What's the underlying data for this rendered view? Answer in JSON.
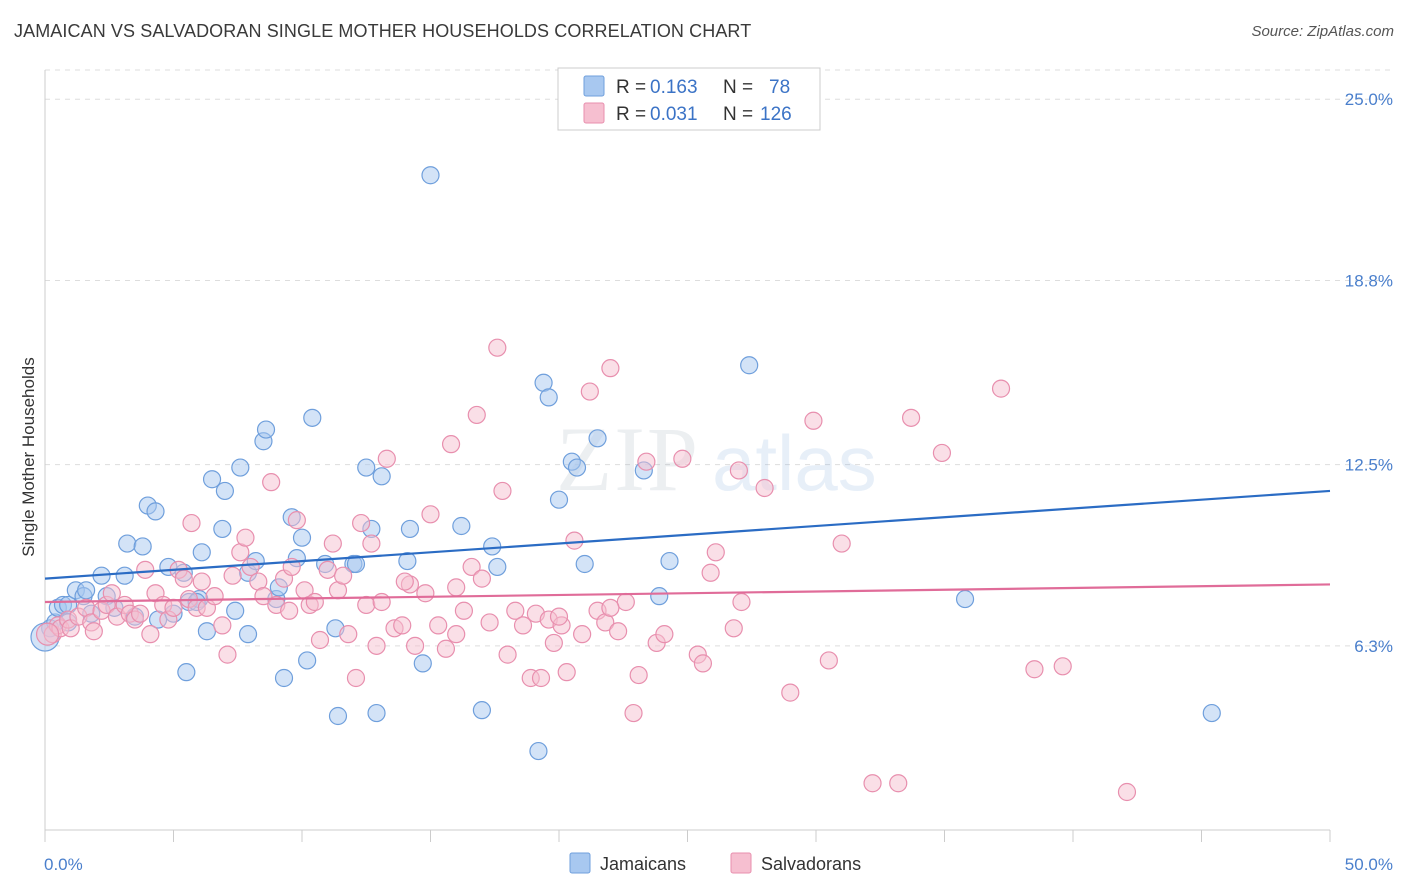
{
  "header": {
    "title": "JAMAICAN VS SALVADORAN SINGLE MOTHER HOUSEHOLDS CORRELATION CHART",
    "source": "Source: ZipAtlas.com"
  },
  "watermark": {
    "zip": "ZIP",
    "atlas": "atlas"
  },
  "colors": {
    "jamaican_fill": "#a8c8f0",
    "jamaican_stroke": "#6f9fdc",
    "jamaican_line": "#2b6cc4",
    "salvadoran_fill": "#f6bfd0",
    "salvadoran_stroke": "#e88fae",
    "salvadoran_line": "#e06c99",
    "grid": "#dddddd",
    "axis_text": "#4a7fcc"
  },
  "stats_legend": {
    "r_label": "R =",
    "n_label": "N =",
    "rows": [
      {
        "r": "0.163",
        "n": "78"
      },
      {
        "r": "0.031",
        "n": "126"
      }
    ]
  },
  "chart_data": {
    "type": "scatter",
    "title": "JAMAICAN VS SALVADORAN SINGLE MOTHER HOUSEHOLDS CORRELATION CHART",
    "xlabel": "",
    "ylabel": "Single Mother Households",
    "xlim": [
      0,
      50
    ],
    "ylim": [
      0,
      26
    ],
    "x_tick_labels": [
      "0.0%",
      "50.0%"
    ],
    "y_ticks": [
      6.3,
      12.5,
      18.8,
      25.0
    ],
    "y_tick_labels": [
      "6.3%",
      "12.5%",
      "18.8%",
      "25.0%"
    ],
    "grid": "horizontal dashed",
    "legend_placement": "bottom-center",
    "series": [
      {
        "name": "Jamaicans",
        "r": 0.163,
        "n": 78,
        "trend": {
          "x": [
            0,
            50
          ],
          "y": [
            8.6,
            11.6
          ]
        },
        "points": [
          [
            0.2,
            6.9
          ],
          [
            0.4,
            7.1
          ],
          [
            0.5,
            7.6
          ],
          [
            0.7,
            7.7
          ],
          [
            0.9,
            7.7
          ],
          [
            1.2,
            8.2
          ],
          [
            1.5,
            8.0
          ],
          [
            1.6,
            8.2
          ],
          [
            2.2,
            8.7
          ],
          [
            2.4,
            8.0
          ],
          [
            3.1,
            8.7
          ],
          [
            3.2,
            9.8
          ],
          [
            3.8,
            9.7
          ],
          [
            4.0,
            11.1
          ],
          [
            4.3,
            10.9
          ],
          [
            4.8,
            9.0
          ],
          [
            5.0,
            7.4
          ],
          [
            5.4,
            8.8
          ],
          [
            5.5,
            5.4
          ],
          [
            5.6,
            7.8
          ],
          [
            6.0,
            7.9
          ],
          [
            6.1,
            9.5
          ],
          [
            6.3,
            6.8
          ],
          [
            6.5,
            12.0
          ],
          [
            6.9,
            10.3
          ],
          [
            7.0,
            11.6
          ],
          [
            7.4,
            7.5
          ],
          [
            7.6,
            12.4
          ],
          [
            7.9,
            8.8
          ],
          [
            7.9,
            6.7
          ],
          [
            8.2,
            9.2
          ],
          [
            8.5,
            13.3
          ],
          [
            8.6,
            13.7
          ],
          [
            9.0,
            7.9
          ],
          [
            9.3,
            5.2
          ],
          [
            9.6,
            10.7
          ],
          [
            9.8,
            9.3
          ],
          [
            10.0,
            10.0
          ],
          [
            10.2,
            5.8
          ],
          [
            10.4,
            14.1
          ],
          [
            10.9,
            9.1
          ],
          [
            11.3,
            6.9
          ],
          [
            11.4,
            3.9
          ],
          [
            12.0,
            9.1
          ],
          [
            12.5,
            12.4
          ],
          [
            12.7,
            10.3
          ],
          [
            12.9,
            4.0
          ],
          [
            13.1,
            12.1
          ],
          [
            14.1,
            9.2
          ],
          [
            14.2,
            10.3
          ],
          [
            14.7,
            5.7
          ],
          [
            15.0,
            22.4
          ],
          [
            16.2,
            10.4
          ],
          [
            17.0,
            4.1
          ],
          [
            17.4,
            9.7
          ],
          [
            17.6,
            9.0
          ],
          [
            19.2,
            2.7
          ],
          [
            19.4,
            15.3
          ],
          [
            19.6,
            14.8
          ],
          [
            20.0,
            11.3
          ],
          [
            20.5,
            12.6
          ],
          [
            20.7,
            12.4
          ],
          [
            21.0,
            9.1
          ],
          [
            21.5,
            13.4
          ],
          [
            23.3,
            12.3
          ],
          [
            23.9,
            8.0
          ],
          [
            24.3,
            9.2
          ],
          [
            27.4,
            15.9
          ],
          [
            35.8,
            7.9
          ],
          [
            45.4,
            4.0
          ],
          [
            0.9,
            7.1
          ],
          [
            1.8,
            7.4
          ],
          [
            2.7,
            7.6
          ],
          [
            3.5,
            7.3
          ],
          [
            4.4,
            7.2
          ],
          [
            5.9,
            7.8
          ],
          [
            12.1,
            9.1
          ],
          [
            9.1,
            8.3
          ]
        ]
      },
      {
        "name": "Salvadorans",
        "r": 0.031,
        "n": 126,
        "trend": {
          "x": [
            0,
            50
          ],
          "y": [
            7.8,
            8.4
          ]
        },
        "points": [
          [
            0.3,
            6.7
          ],
          [
            0.5,
            7.0
          ],
          [
            0.6,
            6.9
          ],
          [
            0.9,
            7.2
          ],
          [
            1.0,
            6.9
          ],
          [
            1.3,
            7.3
          ],
          [
            1.6,
            7.6
          ],
          [
            1.8,
            7.1
          ],
          [
            1.9,
            6.8
          ],
          [
            2.2,
            7.5
          ],
          [
            2.4,
            7.7
          ],
          [
            2.6,
            8.1
          ],
          [
            2.8,
            7.3
          ],
          [
            3.1,
            7.7
          ],
          [
            3.3,
            7.4
          ],
          [
            3.5,
            7.2
          ],
          [
            3.7,
            7.4
          ],
          [
            3.9,
            8.9
          ],
          [
            4.1,
            6.7
          ],
          [
            4.3,
            8.1
          ],
          [
            4.6,
            7.7
          ],
          [
            4.8,
            7.2
          ],
          [
            5.0,
            7.6
          ],
          [
            5.2,
            8.9
          ],
          [
            5.4,
            8.6
          ],
          [
            5.6,
            7.9
          ],
          [
            5.7,
            10.5
          ],
          [
            5.9,
            7.6
          ],
          [
            6.1,
            8.5
          ],
          [
            6.3,
            7.6
          ],
          [
            6.6,
            8.0
          ],
          [
            6.9,
            7.0
          ],
          [
            7.1,
            6.0
          ],
          [
            7.3,
            8.7
          ],
          [
            7.6,
            9.5
          ],
          [
            7.8,
            10.0
          ],
          [
            8.0,
            9.0
          ],
          [
            8.3,
            8.5
          ],
          [
            8.5,
            8.0
          ],
          [
            8.8,
            11.9
          ],
          [
            9.0,
            7.7
          ],
          [
            9.3,
            8.6
          ],
          [
            9.6,
            9.0
          ],
          [
            9.8,
            10.6
          ],
          [
            10.1,
            8.2
          ],
          [
            10.3,
            7.7
          ],
          [
            10.5,
            7.8
          ],
          [
            10.7,
            6.5
          ],
          [
            11.0,
            8.9
          ],
          [
            11.2,
            9.8
          ],
          [
            11.4,
            8.2
          ],
          [
            11.6,
            8.7
          ],
          [
            11.8,
            6.7
          ],
          [
            12.1,
            5.2
          ],
          [
            12.3,
            10.5
          ],
          [
            12.5,
            7.7
          ],
          [
            12.7,
            9.8
          ],
          [
            12.9,
            6.3
          ],
          [
            13.1,
            7.8
          ],
          [
            13.3,
            12.7
          ],
          [
            13.6,
            6.9
          ],
          [
            13.9,
            7.0
          ],
          [
            14.2,
            8.4
          ],
          [
            14.4,
            6.3
          ],
          [
            14.8,
            8.1
          ],
          [
            15.0,
            10.8
          ],
          [
            15.3,
            7.0
          ],
          [
            15.6,
            6.2
          ],
          [
            15.8,
            13.2
          ],
          [
            16.0,
            6.7
          ],
          [
            16.3,
            7.5
          ],
          [
            16.6,
            9.0
          ],
          [
            16.8,
            14.2
          ],
          [
            17.0,
            8.6
          ],
          [
            17.3,
            7.1
          ],
          [
            17.6,
            16.5
          ],
          [
            17.8,
            11.6
          ],
          [
            18.0,
            6.0
          ],
          [
            18.3,
            7.5
          ],
          [
            18.6,
            7.0
          ],
          [
            18.9,
            5.2
          ],
          [
            19.1,
            7.4
          ],
          [
            19.3,
            5.2
          ],
          [
            19.6,
            7.2
          ],
          [
            19.8,
            6.4
          ],
          [
            20.1,
            7.0
          ],
          [
            20.3,
            5.4
          ],
          [
            20.6,
            9.9
          ],
          [
            20.9,
            6.7
          ],
          [
            21.2,
            15.0
          ],
          [
            21.5,
            7.5
          ],
          [
            21.8,
            7.1
          ],
          [
            22.0,
            15.8
          ],
          [
            22.3,
            6.8
          ],
          [
            22.6,
            7.8
          ],
          [
            22.9,
            4.0
          ],
          [
            23.1,
            5.3
          ],
          [
            23.4,
            12.6
          ],
          [
            23.8,
            6.4
          ],
          [
            24.1,
            6.7
          ],
          [
            25.4,
            6.0
          ],
          [
            25.6,
            5.7
          ],
          [
            25.9,
            8.8
          ],
          [
            26.1,
            9.5
          ],
          [
            26.8,
            6.9
          ],
          [
            27.1,
            7.8
          ],
          [
            28.0,
            11.7
          ],
          [
            29.0,
            4.7
          ],
          [
            29.9,
            14.0
          ],
          [
            30.5,
            5.8
          ],
          [
            31.0,
            9.8
          ],
          [
            32.2,
            1.6
          ],
          [
            33.2,
            1.6
          ],
          [
            33.7,
            14.1
          ],
          [
            34.9,
            12.9
          ],
          [
            37.2,
            15.1
          ],
          [
            38.5,
            5.5
          ],
          [
            39.6,
            5.6
          ],
          [
            42.1,
            1.3
          ],
          [
            24.8,
            12.7
          ],
          [
            20.0,
            7.3
          ],
          [
            22.0,
            7.6
          ],
          [
            16.0,
            8.3
          ],
          [
            14.0,
            8.5
          ],
          [
            9.5,
            7.5
          ],
          [
            27.0,
            12.3
          ]
        ]
      }
    ]
  },
  "bottom_legend": [
    {
      "label": "Jamaicans"
    },
    {
      "label": "Salvadorans"
    }
  ]
}
